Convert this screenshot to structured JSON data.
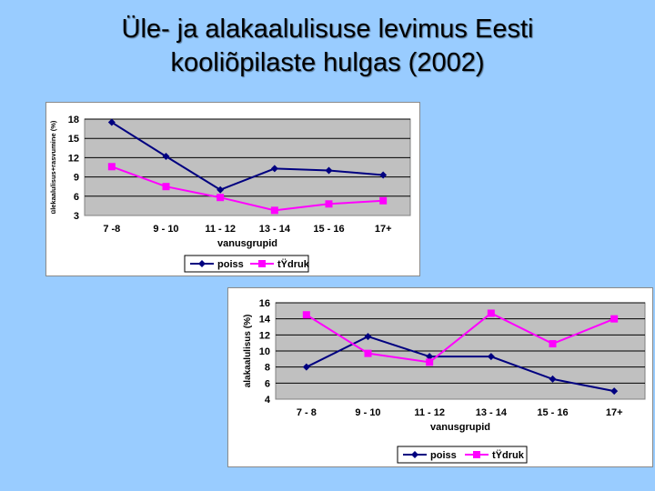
{
  "slide": {
    "title_line1": "Üle- ja alakaalulisuse levimus Eesti",
    "title_line2": "kooliõpilaste hulgas (2002)"
  },
  "colors": {
    "background": "#99ccff",
    "plot_area": "#c0c0c0",
    "poiss": "#000080",
    "tudruk": "#ff00ff"
  },
  "chart_data": [
    {
      "type": "line",
      "categories": [
        "7 -8",
        "9 - 10",
        "11 - 12",
        "13 - 14",
        "15 - 16",
        "17+"
      ],
      "series": [
        {
          "name": "poiss",
          "values": [
            17.5,
            12.2,
            7.0,
            10.3,
            10.0,
            9.3
          ]
        },
        {
          "name": "tŸdruk",
          "values": [
            10.6,
            7.5,
            5.8,
            3.8,
            4.8,
            5.3
          ]
        }
      ],
      "xlabel": "vanusgrupid",
      "ylabel": "ülekaalulisus+rasvumine (%)",
      "yticks": [
        3,
        6,
        9,
        12,
        15,
        18
      ],
      "ylim": [
        3,
        18
      ],
      "grid": true,
      "legend_position": "bottom"
    },
    {
      "type": "line",
      "categories": [
        "7 - 8",
        "9 - 10",
        "11 - 12",
        "13 - 14",
        "15 - 16",
        "17+"
      ],
      "series": [
        {
          "name": "poiss",
          "values": [
            8.0,
            11.8,
            9.3,
            9.3,
            6.5,
            5.0
          ]
        },
        {
          "name": "tŸdruk",
          "values": [
            14.5,
            9.7,
            8.6,
            14.7,
            10.9,
            14.0
          ]
        }
      ],
      "xlabel": "vanusgrupid",
      "ylabel": "alakaalulisus (%)",
      "yticks": [
        4,
        6,
        8,
        10,
        12,
        14,
        16
      ],
      "ylim": [
        4,
        16
      ],
      "grid": true,
      "legend_position": "bottom"
    }
  ]
}
